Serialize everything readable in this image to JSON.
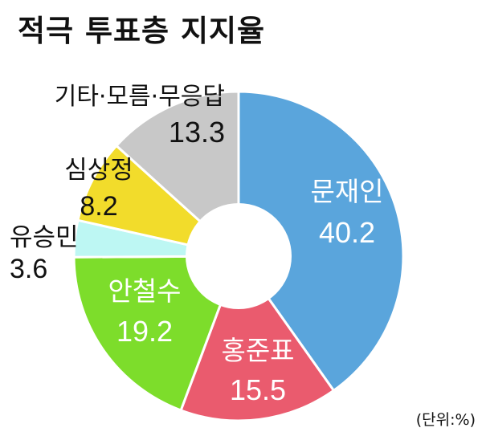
{
  "title": "적극 투표층 지지율",
  "unit_label": "(단위:%)",
  "chart_data": {
    "type": "pie",
    "variant": "donut",
    "title": "적극 투표층 지지율",
    "unit": "%",
    "slices": [
      {
        "label": "문재인",
        "value": 40.2,
        "display": "40.2",
        "color": "#5aa5dc",
        "text_color": "#ffffff"
      },
      {
        "label": "홍준표",
        "value": 15.5,
        "display": "15.5",
        "color": "#ea5b6e",
        "text_color": "#ffffff"
      },
      {
        "label": "안철수",
        "value": 19.2,
        "display": "19.2",
        "color": "#7ddd2b",
        "text_color": "#ffffff"
      },
      {
        "label": "유승민",
        "value": 3.6,
        "display": "3.6",
        "color": "#bdf7f3",
        "text_color": "#111111"
      },
      {
        "label": "심상정",
        "value": 8.2,
        "display": "8.2",
        "color": "#f2dc2b",
        "text_color": "#111111"
      },
      {
        "label": "기타·모름·무응답",
        "value": 13.3,
        "display": "13.3",
        "color": "#c8c8c8",
        "text_color": "#111111"
      }
    ]
  }
}
